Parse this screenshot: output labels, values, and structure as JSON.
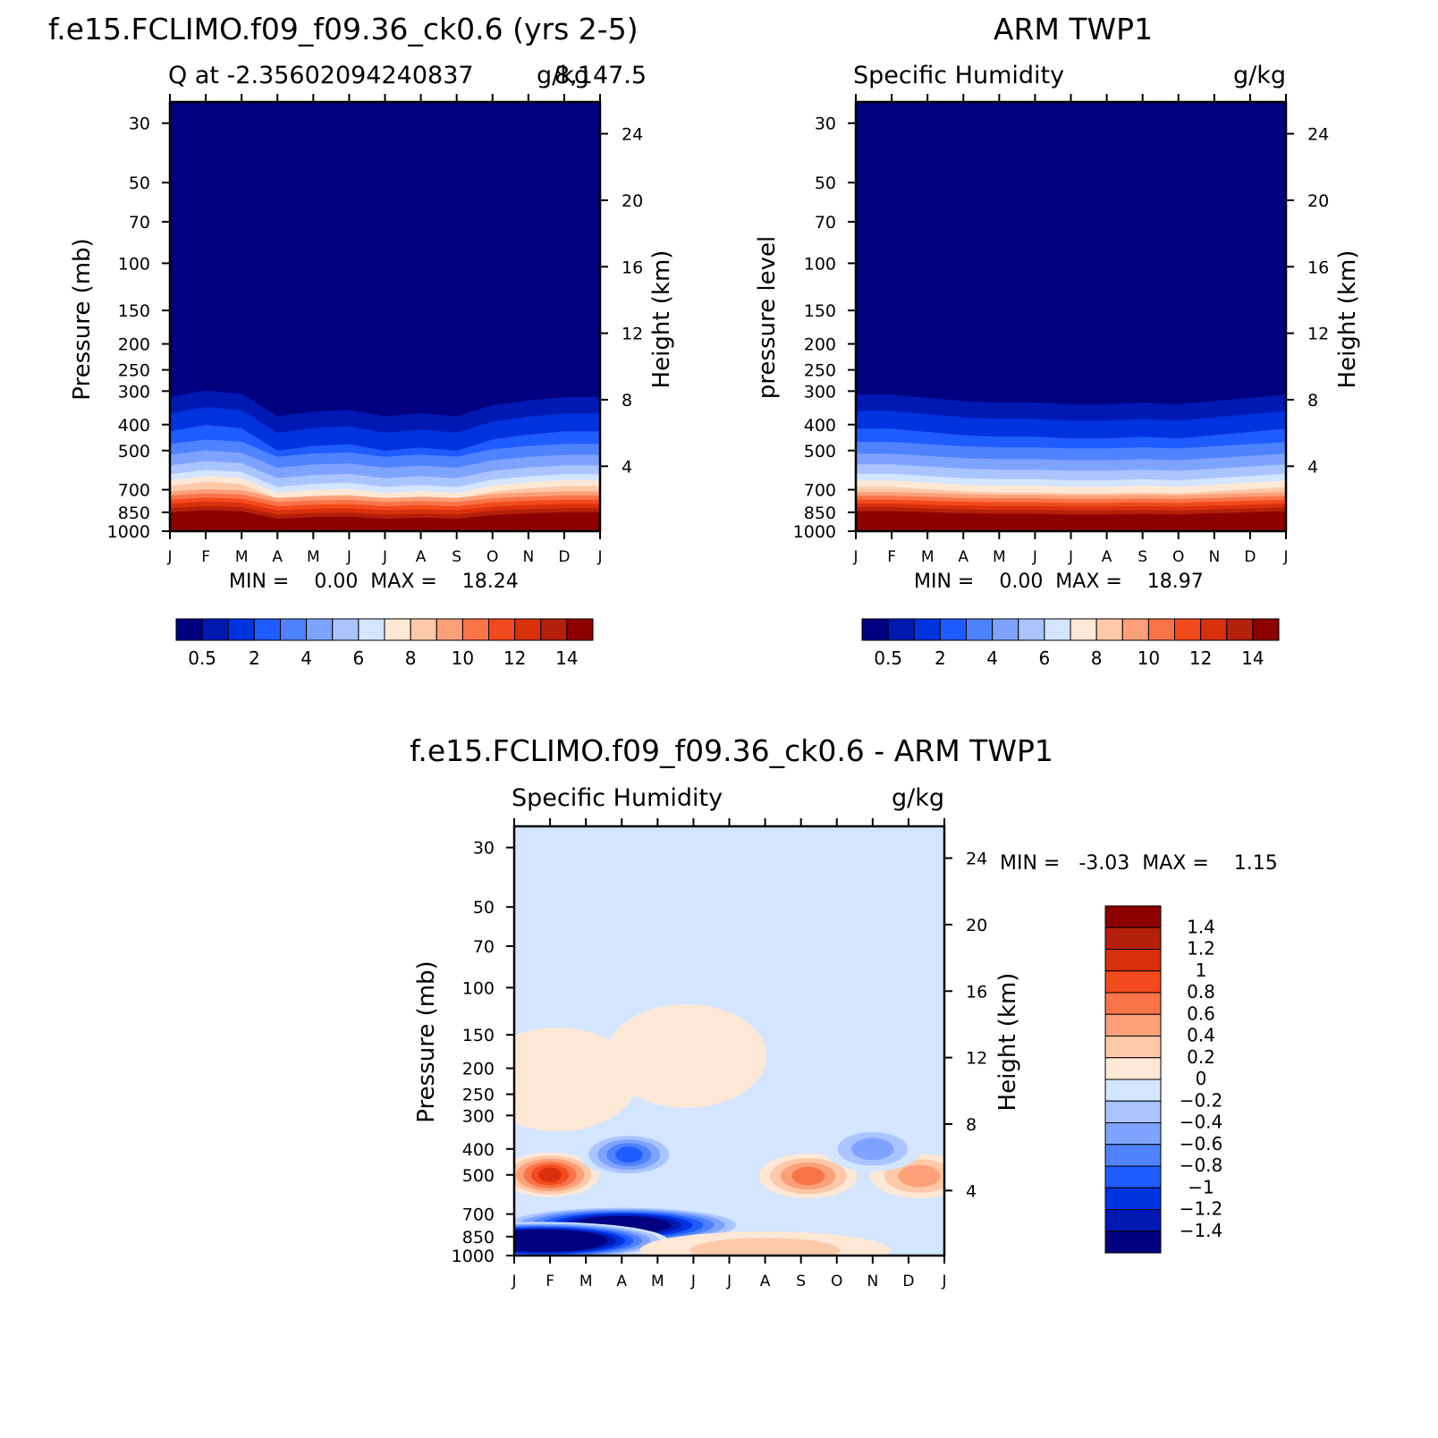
{
  "chart_data": [
    {
      "type": "heatmap",
      "title": "f.e15.FCLIMO.f09_f09.36_ck0.6 (yrs 2-5)",
      "subtitle_left": "Q at -2.35602094240837",
      "subtitle_mid": "8,147.5",
      "units": "g/kg",
      "ylabel": "Pressure (mb)",
      "ylabel_right": "Height (km)",
      "x_ticks": [
        "J",
        "F",
        "M",
        "A",
        "M",
        "J",
        "J",
        "A",
        "S",
        "O",
        "N",
        "D",
        "J"
      ],
      "y_ticks": [
        30,
        50,
        70,
        100,
        150,
        200,
        250,
        300,
        400,
        500,
        700,
        850,
        1000
      ],
      "y_ticks_right": [
        4,
        8,
        12,
        16,
        20,
        24
      ],
      "ylim": [
        1000,
        25
      ],
      "stats": "MIN =    0.00  MAX =    18.24",
      "colorbar": {
        "orientation": "horizontal",
        "labels": [
          "0.5",
          "2",
          "4",
          "6",
          "8",
          "10",
          "12",
          "14"
        ],
        "colors": [
          "#000080",
          "#0019b3",
          "#0033e0",
          "#1f5cff",
          "#4f82ff",
          "#7ea3ff",
          "#aac4ff",
          "#d3e5ff",
          "#fde8d6",
          "#fdc9a8",
          "#fca079",
          "#fa7448",
          "#f24a1d",
          "#d9300c",
          "#b5200b",
          "#8c0000"
        ]
      },
      "q_profile": {
        "pressure": [
          1000,
          925,
          850,
          700,
          600,
          500,
          450,
          400,
          350,
          300,
          250,
          200,
          150,
          100,
          30
        ],
        "values": [
          18.2,
          16.6,
          14.0,
          8.6,
          5.6,
          3.6,
          2.5,
          1.5,
          0.8,
          0.35,
          0.15,
          0.05,
          0.02,
          0.01,
          0.0
        ]
      },
      "monthly_shift": [
        0.0,
        -0.04,
        -0.02,
        0.12,
        0.09,
        0.08,
        0.12,
        0.1,
        0.12,
        0.05,
        0.02,
        0.0,
        0.0
      ]
    },
    {
      "type": "heatmap",
      "title": "ARM TWP1",
      "subtitle_left": "Specific Humidity",
      "units": "g/kg",
      "ylabel": "pressure level",
      "ylabel_right": "Height (km)",
      "x_ticks": [
        "J",
        "F",
        "M",
        "A",
        "M",
        "J",
        "J",
        "A",
        "S",
        "O",
        "N",
        "D",
        "J"
      ],
      "y_ticks": [
        30,
        50,
        70,
        100,
        150,
        200,
        250,
        300,
        400,
        500,
        700,
        850,
        1000
      ],
      "y_ticks_right": [
        4,
        8,
        12,
        16,
        20,
        24
      ],
      "ylim": [
        1000,
        25
      ],
      "stats": "MIN =    0.00  MAX =    18.97",
      "colorbar": {
        "orientation": "horizontal",
        "labels": [
          "0.5",
          "2",
          "4",
          "6",
          "8",
          "10",
          "12",
          "14"
        ],
        "colors": [
          "#000080",
          "#0019b3",
          "#0033e0",
          "#1f5cff",
          "#4f82ff",
          "#7ea3ff",
          "#aac4ff",
          "#d3e5ff",
          "#fde8d6",
          "#fdc9a8",
          "#fca079",
          "#fa7448",
          "#f24a1d",
          "#d9300c",
          "#b5200b",
          "#8c0000"
        ]
      },
      "q_profile": {
        "pressure": [
          1000,
          925,
          850,
          700,
          600,
          500,
          450,
          400,
          350,
          300,
          250,
          200,
          150,
          100,
          30
        ],
        "values": [
          18.9,
          17.2,
          14.3,
          8.4,
          5.7,
          3.7,
          2.7,
          1.7,
          0.9,
          0.4,
          0.2,
          0.08,
          0.03,
          0.01,
          0.0
        ]
      },
      "monthly_shift": [
        0.0,
        0.0,
        0.02,
        0.04,
        0.05,
        0.05,
        0.06,
        0.06,
        0.05,
        0.06,
        0.04,
        0.02,
        0.0
      ]
    },
    {
      "type": "heatmap",
      "title": "f.e15.FCLIMO.f09_f09.36_ck0.6 - ARM TWP1",
      "subtitle_left": "Specific Humidity",
      "units": "g/kg",
      "ylabel": "Pressure (mb)",
      "ylabel_right": "Height (km)",
      "x_ticks": [
        "J",
        "F",
        "M",
        "A",
        "M",
        "J",
        "J",
        "A",
        "S",
        "O",
        "N",
        "D",
        "J"
      ],
      "y_ticks": [
        30,
        50,
        70,
        100,
        150,
        200,
        250,
        300,
        400,
        500,
        700,
        850,
        1000
      ],
      "y_ticks_right": [
        4,
        8,
        12,
        16,
        20,
        24
      ],
      "ylim": [
        1000,
        25
      ],
      "stats": "MIN =   -3.03  MAX =    1.15",
      "colorbar": {
        "orientation": "vertical",
        "labels": [
          "1.4",
          "1.2",
          "1",
          "0.8",
          "0.6",
          "0.4",
          "0.2",
          "0",
          "-0.2",
          "-0.4",
          "-0.6",
          "-0.8",
          "-1",
          "-1.2",
          "-1.4"
        ],
        "colors": [
          "#8c0000",
          "#b5200b",
          "#d9300c",
          "#f24a1d",
          "#fa7448",
          "#fca079",
          "#fdc9a8",
          "#fde8d6",
          "#d3e5ff",
          "#aac4ff",
          "#7ea3ff",
          "#4f82ff",
          "#1f5cff",
          "#0033e0",
          "#0019b3",
          "#000080"
        ]
      },
      "features": [
        {
          "month": 1.0,
          "pressure": 500,
          "value": 1.15
        },
        {
          "month": 8.2,
          "pressure": 505,
          "value": 0.8
        },
        {
          "month": 11.3,
          "pressure": 505,
          "value": 0.7
        },
        {
          "month": 3.2,
          "pressure": 420,
          "value": -0.9
        },
        {
          "month": 10.0,
          "pressure": 400,
          "value": -0.6
        },
        {
          "month": 3.0,
          "pressure": 770,
          "value": -2.2
        },
        {
          "month": 0.8,
          "pressure": 880,
          "value": -3.03
        },
        {
          "month": 7.0,
          "pressure": 955,
          "value": 0.4
        },
        {
          "month": 4.8,
          "pressure": 180,
          "value": 0.1
        },
        {
          "month": 1.2,
          "pressure": 220,
          "value": 0.1
        }
      ]
    }
  ]
}
